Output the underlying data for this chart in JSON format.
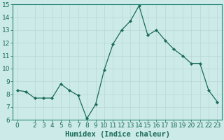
{
  "x": [
    0,
    1,
    2,
    3,
    4,
    5,
    6,
    7,
    8,
    9,
    10,
    11,
    12,
    13,
    14,
    15,
    16,
    17,
    18,
    19,
    20,
    21,
    22,
    23
  ],
  "y": [
    8.3,
    8.2,
    7.7,
    7.7,
    7.7,
    8.8,
    8.3,
    7.9,
    6.1,
    7.2,
    9.9,
    11.9,
    13.0,
    13.7,
    14.9,
    12.6,
    13.0,
    12.2,
    11.5,
    11.0,
    10.4,
    10.4,
    8.3,
    7.4
  ],
  "xlabel": "Humidex (Indice chaleur)",
  "ylim": [
    6,
    15
  ],
  "xlim": [
    -0.5,
    23.5
  ],
  "yticks": [
    6,
    7,
    8,
    9,
    10,
    11,
    12,
    13,
    14,
    15
  ],
  "xticks": [
    0,
    2,
    3,
    4,
    5,
    6,
    7,
    8,
    9,
    10,
    11,
    12,
    13,
    14,
    15,
    16,
    17,
    18,
    19,
    20,
    21,
    22,
    23
  ],
  "line_color": "#1a6b5a",
  "marker": "D",
  "marker_size": 2.0,
  "bg_color": "#cceae7",
  "grid_color": "#b8d8d5",
  "tick_label_fontsize": 6.5,
  "xlabel_fontsize": 7.5
}
